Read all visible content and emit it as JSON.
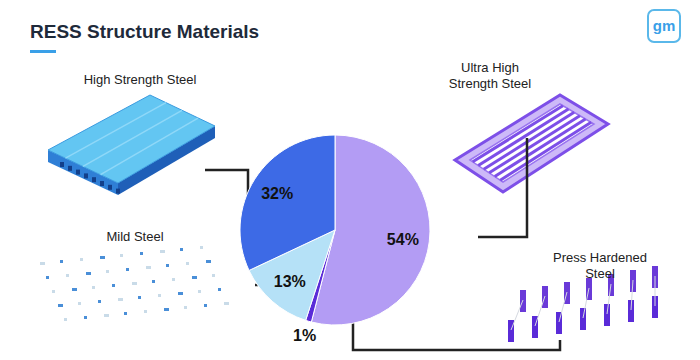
{
  "logo": "gm",
  "chart_data": {
    "type": "pie",
    "title": "RESS Structure Materials",
    "categories": [
      "Ultra High Strength Steel",
      "Press Hardened Steel",
      "Mild Steel",
      "High Strength Steel"
    ],
    "values": [
      54,
      1,
      13,
      32
    ],
    "value_labels": [
      "54%",
      "1%",
      "13%",
      "32%"
    ],
    "colors": [
      "#b39cf4",
      "#5a2bd8",
      "#b5e1f7",
      "#3d6ae6"
    ],
    "data_labels": true
  }
}
